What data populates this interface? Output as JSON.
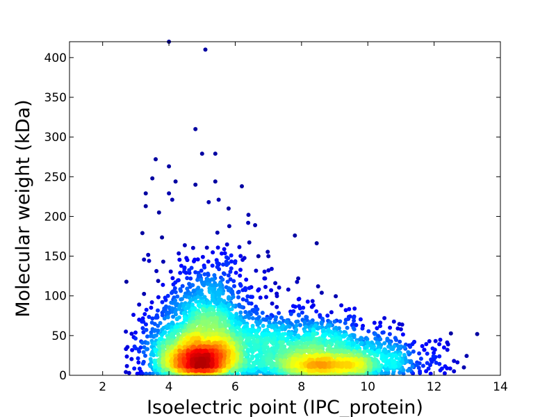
{
  "chart_data": {
    "type": "scatter",
    "title": "",
    "xlabel": "Isoelectric point (IPC_protein)",
    "ylabel": "Molecular weight (kDa)",
    "xlim": [
      1,
      14
    ],
    "ylim": [
      0,
      420
    ],
    "xticks": [
      2,
      4,
      6,
      8,
      10,
      12,
      14
    ],
    "yticks": [
      0,
      50,
      100,
      150,
      200,
      250,
      300,
      350,
      400
    ],
    "color_encoding": "point density (blue = low, red = high)",
    "colors": {
      "low": "#00008f",
      "mid": "#00c8ff",
      "high": "#9a0000"
    },
    "density_peaks": [
      {
        "x": 5.0,
        "y": 18,
        "level": "highest"
      },
      {
        "x": 8.7,
        "y": 8,
        "level": "high"
      }
    ],
    "outliers": [
      {
        "x": 4.0,
        "y": 420
      },
      {
        "x": 5.1,
        "y": 410
      },
      {
        "x": 4.8,
        "y": 310
      },
      {
        "x": 5.0,
        "y": 279
      },
      {
        "x": 5.4,
        "y": 279
      },
      {
        "x": 3.6,
        "y": 272
      },
      {
        "x": 4.0,
        "y": 263
      },
      {
        "x": 3.5,
        "y": 248
      },
      {
        "x": 4.2,
        "y": 244
      },
      {
        "x": 5.4,
        "y": 244
      },
      {
        "x": 6.2,
        "y": 238
      },
      {
        "x": 4.8,
        "y": 240
      },
      {
        "x": 3.3,
        "y": 229
      },
      {
        "x": 4.0,
        "y": 229
      },
      {
        "x": 4.1,
        "y": 221
      },
      {
        "x": 5.2,
        "y": 218
      },
      {
        "x": 5.5,
        "y": 221
      },
      {
        "x": 3.3,
        "y": 213
      },
      {
        "x": 6.4,
        "y": 202
      },
      {
        "x": 3.7,
        "y": 205
      },
      {
        "x": 5.8,
        "y": 210
      },
      {
        "x": 6.6,
        "y": 189
      },
      {
        "x": 7.8,
        "y": 176
      },
      {
        "x": 3.2,
        "y": 179
      },
      {
        "x": 6.7,
        "y": 150
      },
      {
        "x": 7.0,
        "y": 150
      },
      {
        "x": 3.4,
        "y": 144
      },
      {
        "x": 7.1,
        "y": 134
      },
      {
        "x": 6.9,
        "y": 122
      },
      {
        "x": 7.9,
        "y": 122
      },
      {
        "x": 8.5,
        "y": 112
      },
      {
        "x": 7.6,
        "y": 108
      },
      {
        "x": 3.1,
        "y": 89
      },
      {
        "x": 9.2,
        "y": 88
      },
      {
        "x": 9.6,
        "y": 84
      },
      {
        "x": 10.5,
        "y": 72
      },
      {
        "x": 2.7,
        "y": 55
      },
      {
        "x": 11.0,
        "y": 58
      },
      {
        "x": 11.7,
        "y": 32
      },
      {
        "x": 12.3,
        "y": 35
      },
      {
        "x": 12.4,
        "y": 32
      },
      {
        "x": 13.3,
        "y": 52
      },
      {
        "x": 12.9,
        "y": 10
      },
      {
        "x": 12.6,
        "y": 18
      },
      {
        "x": 12.6,
        "y": 5
      },
      {
        "x": 3.1,
        "y": 70
      },
      {
        "x": 3.2,
        "y": 41
      },
      {
        "x": 3.1,
        "y": 30
      },
      {
        "x": 2.8,
        "y": 3
      },
      {
        "x": 2.7,
        "y": 4
      }
    ],
    "clusters": [
      {
        "cx": 4.95,
        "cy": 18,
        "sx": 0.55,
        "sy": 12,
        "n": 900
      },
      {
        "cx": 5.1,
        "cy": 40,
        "sx": 0.8,
        "sy": 28,
        "n": 1300
      },
      {
        "cx": 5.2,
        "cy": 90,
        "sx": 0.9,
        "sy": 35,
        "n": 500
      },
      {
        "cx": 8.7,
        "cy": 10,
        "sx": 0.9,
        "sy": 7,
        "n": 700
      },
      {
        "cx": 8.5,
        "cy": 32,
        "sx": 1.2,
        "sy": 20,
        "n": 900
      },
      {
        "cx": 7.0,
        "cy": 35,
        "sx": 1.2,
        "sy": 25,
        "n": 500
      },
      {
        "cx": 10.5,
        "cy": 20,
        "sx": 1.0,
        "sy": 15,
        "n": 300
      },
      {
        "cx": 4.2,
        "cy": 25,
        "sx": 0.6,
        "sy": 20,
        "n": 250
      }
    ]
  }
}
